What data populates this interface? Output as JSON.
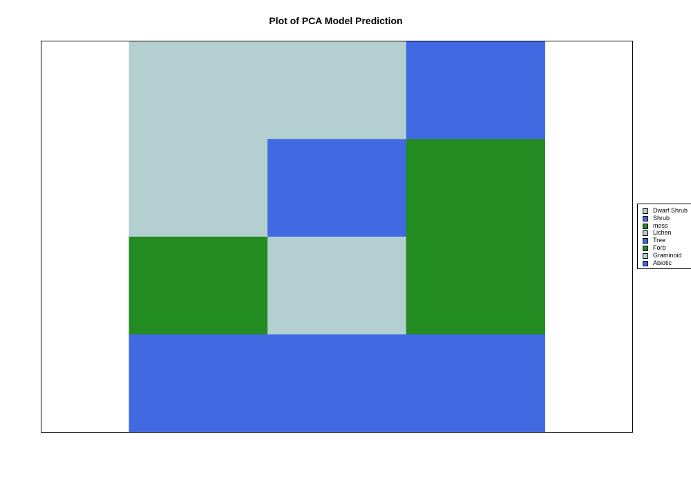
{
  "chart_data": {
    "type": "heatmap",
    "title": "Plot of PCA Model Prediction",
    "xlim": [
      0,
      1
    ],
    "ylim": [
      0,
      1
    ],
    "grid": false,
    "legend_position": "right",
    "colors": {
      "Dwarf Shrub": "#b4cfd0",
      "Shrub": "#4169e1",
      "moss": "#228b22",
      "Lichen": "#b4cfd0",
      "Tree": "#4169e1",
      "Forb": "#228b22",
      "Graminoid": "#b4cfd0",
      "Abiotic": "#4169e1"
    },
    "legend": [
      "Dwarf Shrub",
      "Shrub",
      "moss",
      "Lichen",
      "Tree",
      "Forb",
      "Graminoid",
      "Abiotic"
    ],
    "grid_extent": {
      "x": [
        0.148,
        0.852
      ],
      "y": [
        0,
        1
      ]
    },
    "cells": [
      [
        "Dwarf Shrub",
        "Dwarf Shrub",
        "Shrub"
      ],
      [
        "Dwarf Shrub",
        "Shrub",
        "moss"
      ],
      [
        "moss",
        "Lichen",
        "moss"
      ],
      [
        "Shrub",
        "Shrub",
        "Shrub"
      ]
    ]
  }
}
